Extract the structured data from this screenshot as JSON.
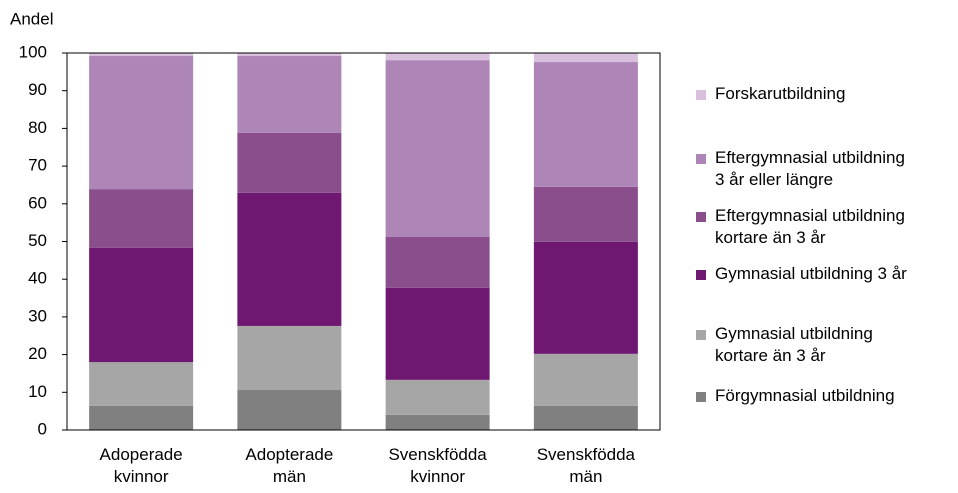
{
  "chart_data": {
    "type": "stacked_bar",
    "y_label": "Andel",
    "categories": [
      "Adoperade kvinnor",
      "Adopterade män",
      "Svenskfödda kvinnor",
      "Svenskfödda män"
    ],
    "series": [
      {
        "name": "Förgymnasial utbildning",
        "color": "#808080",
        "values": [
          6.4,
          10.6,
          4.0,
          6.4
        ]
      },
      {
        "name": "Gymnasial utbildning kortare än 3 år",
        "color": "#a6a6a6",
        "values": [
          11.6,
          17.0,
          9.3,
          13.8
        ]
      },
      {
        "name": "Gymnasial utbildning 3 år",
        "color": "#6e1872",
        "values": [
          30.3,
          35.3,
          24.4,
          29.7
        ]
      },
      {
        "name": "Eftergymnasial utbildning kortare än 3 år",
        "color": "#8b4e8c",
        "values": [
          15.6,
          15.9,
          13.5,
          14.6
        ]
      },
      {
        "name": "Eftergymnasial utbildning 3 år eller längre",
        "color": "#ad86b7",
        "values": [
          35.3,
          20.4,
          46.9,
          33.1
        ]
      },
      {
        "name": "Forskarutbildning",
        "color": "#d8c0dd",
        "values": [
          0.8,
          0.8,
          1.9,
          2.4
        ]
      }
    ],
    "ylim": [
      0,
      100
    ],
    "yticks": [
      0,
      10,
      20,
      30,
      40,
      50,
      60,
      70,
      80,
      90,
      100
    ],
    "legend": "right"
  }
}
